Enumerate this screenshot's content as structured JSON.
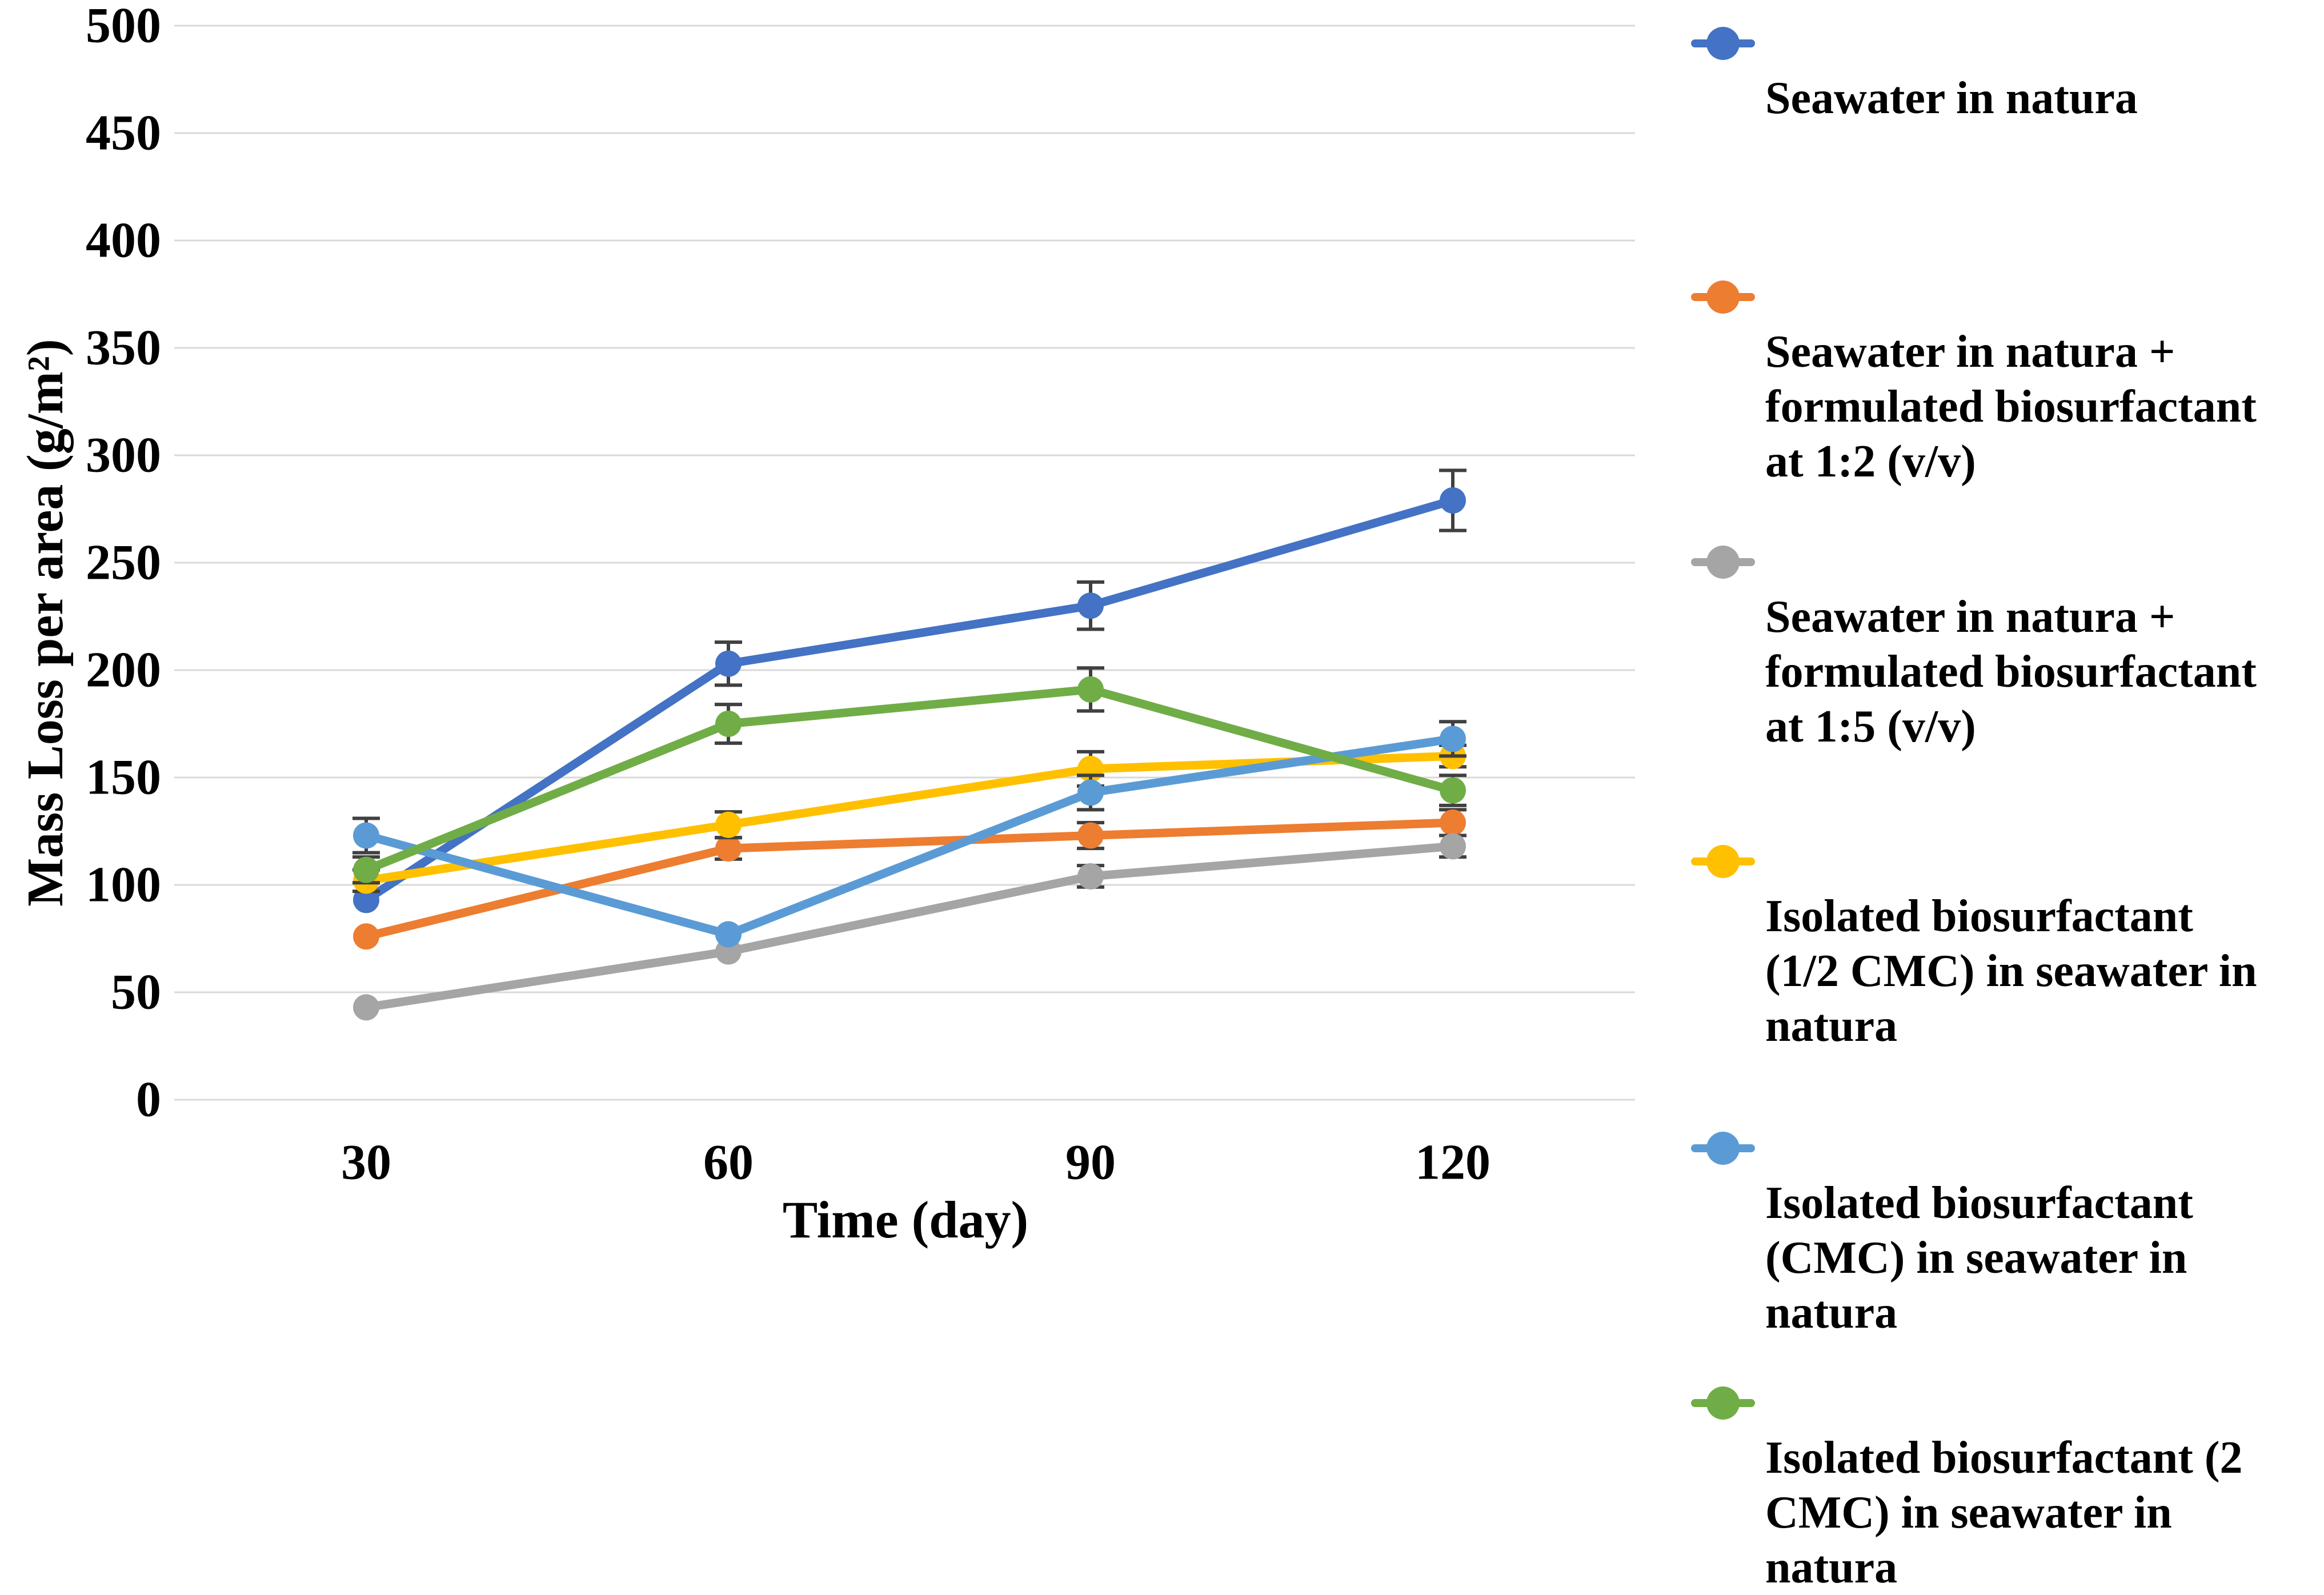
{
  "chart_data": {
    "type": "line",
    "x": [
      30,
      60,
      90,
      120
    ],
    "xticklabels": [
      "30",
      "60",
      "90",
      "120"
    ],
    "xlabel": "Time (day)",
    "ylabel": "Mass Loss per area (g/m²)",
    "ylim": [
      0,
      500
    ],
    "ytick_step": 50,
    "yticklabels": [
      "0",
      "50",
      "100",
      "150",
      "200",
      "250",
      "300",
      "350",
      "400",
      "450",
      "500"
    ],
    "grid": "horizontal",
    "legend_position": "right",
    "colors": {
      "background": "#FFFFFF",
      "grid": "#D9D9D9",
      "error_bar": "#404040",
      "text": "#000000"
    },
    "series": [
      {
        "name": "Seawater in natura",
        "color": "#4472C4",
        "values": [
          93,
          203,
          230,
          279
        ],
        "errors": [
          0,
          10,
          11,
          14
        ]
      },
      {
        "name": "Seawater in natura +\nformulated biosurfactant\nat 1:2 (v/v)",
        "color": "#ED7D31",
        "values": [
          76,
          117,
          123,
          129
        ],
        "errors": [
          0,
          5,
          6,
          6
        ]
      },
      {
        "name": "Seawater in natura +\nformulated biosurfactant\nat 1:5 (v/v)",
        "color": "#A5A5A5",
        "values": [
          43,
          69,
          104,
          118
        ],
        "errors": [
          0,
          0,
          5,
          5
        ]
      },
      {
        "name": "Isolated biosurfactant\n(1/2 CMC) in seawater in\nnatura",
        "color": "#FFC000",
        "values": [
          102,
          128,
          154,
          160
        ],
        "errors": [
          5,
          6,
          8,
          5
        ]
      },
      {
        "name": "Isolated biosurfactant\n(CMC) in seawater in\nnatura",
        "color": "#5B9BD5",
        "values": [
          123,
          77,
          143,
          168
        ],
        "errors": [
          8,
          0,
          8,
          8
        ]
      },
      {
        "name": "Isolated biosurfactant (2\nCMC) in seawater in\nnatura",
        "color": "#70AD47",
        "values": [
          107,
          175,
          191,
          144
        ],
        "errors": [
          6,
          9,
          10,
          7
        ]
      }
    ]
  }
}
